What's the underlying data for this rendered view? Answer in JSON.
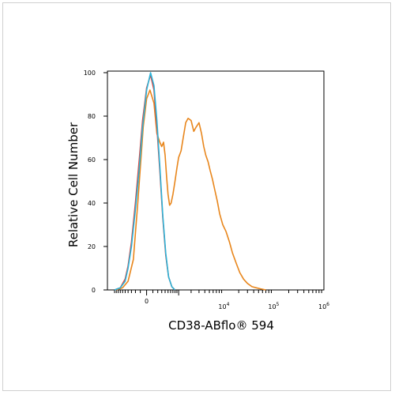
{
  "chart_data": {
    "type": "line",
    "title": "",
    "xlabel": "CD38-ABflo® 594",
    "ylabel": "Relative Cell Number",
    "x_scale": "biexponential",
    "xlim": [
      -1000,
      1000000
    ],
    "ylim": [
      0,
      100
    ],
    "y_ticks": [
      0,
      20,
      40,
      60,
      80,
      100
    ],
    "x_tick_labels": [
      {
        "value": 0,
        "label": "0"
      },
      {
        "value": 10000,
        "base": "10",
        "exp": "4"
      },
      {
        "value": 100000,
        "base": "10",
        "exp": "5"
      },
      {
        "value": 1000000,
        "base": "10",
        "exp": "6"
      }
    ],
    "grid": false,
    "legend": "none",
    "series": [
      {
        "color": "#e8861c",
        "x": [
          -900,
          -600,
          -400,
          -250,
          -150,
          -50,
          0,
          50,
          120,
          180,
          250,
          300,
          350,
          400,
          450,
          500,
          560,
          620,
          700,
          800,
          900,
          1000,
          1150,
          1300,
          1500,
          1700,
          2000,
          2300,
          2600,
          3000,
          3400,
          3800,
          4200,
          4700,
          5200,
          5800,
          6500,
          7300,
          8200,
          9500,
          11000,
          13000,
          15000,
          18000,
          21000,
          25000,
          30000,
          37000,
          45000,
          55000,
          70000
        ],
        "y": [
          0,
          1,
          4,
          14,
          40,
          75,
          88,
          92,
          86,
          72,
          68,
          66,
          68,
          62,
          52,
          44,
          39,
          40,
          44,
          50,
          56,
          61,
          64,
          70,
          77,
          79,
          78,
          73,
          75,
          77,
          72,
          66,
          62,
          59,
          55,
          51,
          46,
          41,
          35,
          30,
          27,
          22,
          17,
          12,
          8,
          5,
          3,
          1.5,
          1,
          0.5,
          0
        ]
      },
      {
        "color": "#e0403a",
        "x": [
          -1000,
          -700,
          -500,
          -400,
          -300,
          -200,
          -120,
          -60,
          0,
          60,
          120,
          180,
          250,
          330,
          420,
          520,
          650,
          800
        ],
        "y": [
          0,
          1,
          5,
          11,
          22,
          40,
          60,
          78,
          93,
          99,
          92,
          75,
          55,
          33,
          16,
          6,
          1.5,
          0
        ]
      },
      {
        "color": "#2bb3d8",
        "x": [
          -1000,
          -700,
          -500,
          -400,
          -300,
          -200,
          -120,
          -60,
          0,
          60,
          120,
          180,
          250,
          330,
          420,
          520,
          650,
          800
        ],
        "y": [
          0,
          1,
          4,
          10,
          20,
          37,
          56,
          75,
          92,
          100,
          94,
          78,
          57,
          34,
          17,
          6,
          1.5,
          0
        ]
      }
    ]
  }
}
